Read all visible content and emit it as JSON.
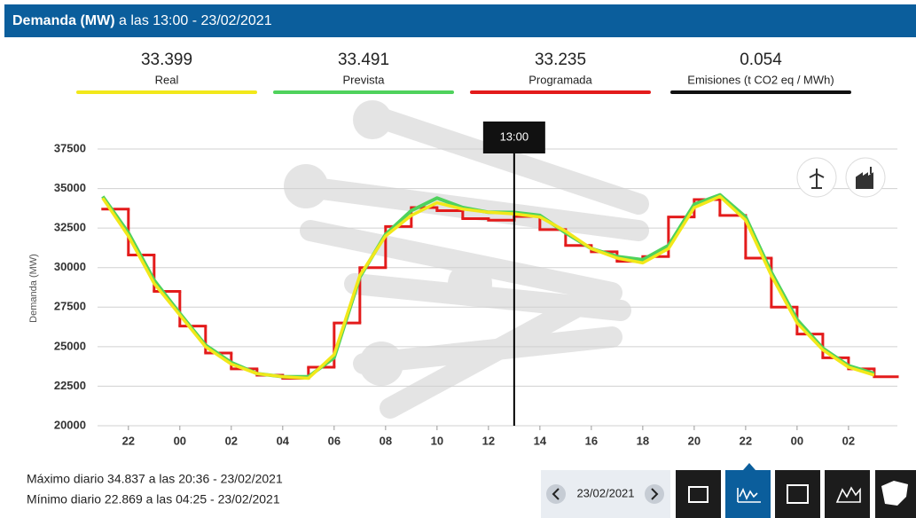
{
  "header": {
    "title_bold": "Demanda (MW)",
    "title_rest": "a las 13:00 - 23/02/2021"
  },
  "summary": [
    {
      "value": "33.399",
      "label": "Real",
      "color": "#f2e81a"
    },
    {
      "value": "33.491",
      "label": "Prevista",
      "color": "#4fd25c"
    },
    {
      "value": "33.235",
      "label": "Programada",
      "color": "#e31b1b"
    },
    {
      "value": "0.054",
      "label": "Emisiones (t CO2 eq / MWh)",
      "color": "#111111"
    }
  ],
  "chart_data": {
    "type": "line",
    "y_label": "Demanda (MW)",
    "x": [
      21,
      22,
      23,
      24,
      25,
      26,
      27,
      28,
      29,
      30,
      31,
      32,
      33,
      34,
      35,
      36,
      37,
      38,
      39,
      40,
      41,
      42,
      43,
      44,
      45,
      46,
      47,
      48,
      49,
      50,
      51
    ],
    "xlim": [
      20.8,
      51.9
    ],
    "xticks": [
      22,
      {
        "value": 24,
        "label": "00"
      },
      {
        "value": 26,
        "label": "02"
      },
      {
        "value": 28,
        "label": "04"
      },
      {
        "value": 30,
        "label": "06"
      },
      {
        "value": 32,
        "label": "08"
      },
      {
        "value": 34,
        "label": "10"
      },
      {
        "value": 36,
        "label": "12"
      },
      {
        "value": 38,
        "label": "14"
      },
      {
        "value": 40,
        "label": "16"
      },
      {
        "value": 42,
        "label": "18"
      },
      {
        "value": 44,
        "label": "20"
      },
      {
        "value": 46,
        "label": "22"
      },
      {
        "value": 48,
        "label": "00"
      },
      {
        "value": 50,
        "label": "02"
      }
    ],
    "ylim": [
      20000,
      37500
    ],
    "yticks": [
      20000,
      22500,
      25000,
      27500,
      30000,
      32500,
      35000,
      37500
    ],
    "grid": true,
    "cursor": {
      "x": 37,
      "label": "13:00"
    },
    "series": [
      {
        "name": "Programada",
        "color": "#e31b1b",
        "step": true,
        "values": [
          33700,
          30800,
          28500,
          26300,
          24600,
          23600,
          23200,
          23000,
          23700,
          26500,
          30000,
          32600,
          33800,
          33600,
          33100,
          33000,
          33235,
          32400,
          31400,
          31000,
          30400,
          30700,
          33200,
          34300,
          33300,
          30600,
          27500,
          25800,
          24300,
          23600,
          23100
        ]
      },
      {
        "name": "Prevista",
        "color": "#4fd25c",
        "values": [
          34500,
          32200,
          29200,
          27100,
          25100,
          24000,
          23300,
          23100,
          23100,
          24300,
          29400,
          32100,
          33600,
          34400,
          33800,
          33500,
          33491,
          33300,
          32200,
          31200,
          30700,
          30500,
          31400,
          34000,
          34600,
          33200,
          29700,
          26700,
          24900,
          23800,
          23300
        ]
      },
      {
        "name": "Real",
        "color": "#f2e81a",
        "values": [
          34400,
          32000,
          29000,
          27000,
          25000,
          23900,
          23300,
          23100,
          23000,
          24500,
          29500,
          32000,
          33300,
          34100,
          33700,
          33500,
          33399,
          33200,
          32300,
          31200,
          30600,
          30300,
          31200,
          33800,
          34500,
          33000,
          29500,
          26500,
          24800,
          23700,
          23200
        ]
      }
    ]
  },
  "footer": {
    "max": "Máximo diario 34.837 a las 20:36 - 23/02/2021",
    "min": "Mínimo diario 22.869 a las 04:25 - 23/02/2021",
    "date": "23/02/2021"
  }
}
